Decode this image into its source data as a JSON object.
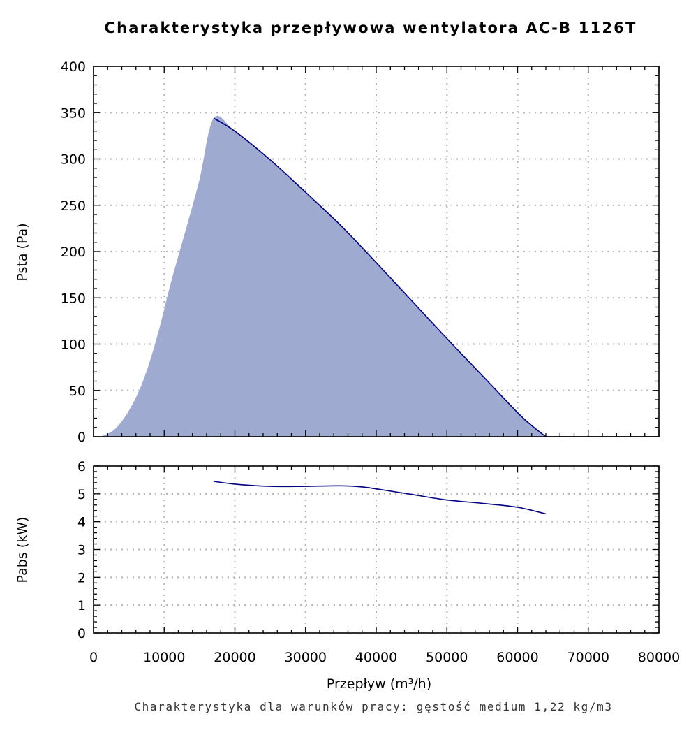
{
  "chart_data": [
    {
      "type": "area",
      "title": "Charakterystyka przepływowa wentylatora AC-B 1126T",
      "ylabel": "Psta (Pa)",
      "xlim": [
        0,
        80000
      ],
      "ylim": [
        0,
        400
      ],
      "xticks": [
        "0",
        "10000",
        "20000",
        "30000",
        "40000",
        "50000",
        "60000",
        "70000",
        "80000"
      ],
      "yticks": [
        "0",
        "50",
        "100",
        "150",
        "200",
        "250",
        "300",
        "350",
        "400"
      ],
      "grid": true,
      "fill_color": "#9eaad0",
      "line_color": "#000080",
      "series": [
        {
          "x": [
            1000,
            3000,
            5000,
            7000,
            9000,
            11000,
            13000,
            15000,
            17000,
            20000,
            25000,
            30000,
            35000,
            40000,
            45000,
            50000,
            55000,
            60000,
            62000,
            64000
          ],
          "values": [
            0,
            8,
            28,
            60,
            108,
            168,
            222,
            278,
            344,
            330,
            299,
            264,
            228,
            188,
            147,
            106,
            66,
            26,
            12,
            0
          ]
        }
      ]
    },
    {
      "type": "line",
      "ylabel": "Pabs (kW)",
      "xlabel": "Przepływ (m³/h)",
      "xlim": [
        0,
        80000
      ],
      "ylim": [
        0,
        6
      ],
      "xticks": [
        "0",
        "10000",
        "20000",
        "30000",
        "40000",
        "50000",
        "60000",
        "70000",
        "80000"
      ],
      "yticks": [
        "0",
        "1",
        "2",
        "3",
        "4",
        "5",
        "6"
      ],
      "grid": true,
      "line_color": "#000080",
      "series": [
        {
          "x": [
            17000,
            20000,
            25000,
            30000,
            35000,
            38000,
            40000,
            45000,
            50000,
            55000,
            60000,
            64000
          ],
          "values": [
            5.45,
            5.35,
            5.27,
            5.27,
            5.29,
            5.25,
            5.18,
            4.98,
            4.78,
            4.66,
            4.52,
            4.28
          ]
        }
      ]
    }
  ],
  "footer_note": "Charakterystyka dla warunków pracy: gęstość medium 1,22 kg/m3"
}
